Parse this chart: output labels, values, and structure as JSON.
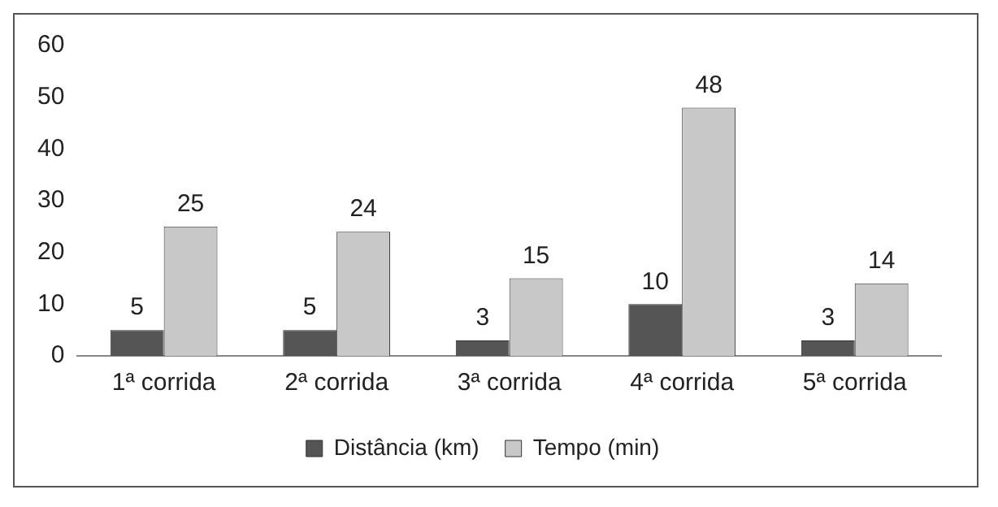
{
  "chart_data": {
    "type": "bar",
    "categories": [
      "1ª corrida",
      "2ª corrida",
      "3ª corrida",
      "4ª corrida",
      "5ª corrida"
    ],
    "series": [
      {
        "name": "Distância (km)",
        "color": "#555555",
        "values": [
          5,
          5,
          3,
          10,
          3
        ]
      },
      {
        "name": "Tempo (min)",
        "color": "#c8c8c8",
        "values": [
          25,
          24,
          15,
          48,
          14
        ]
      }
    ],
    "ylim": [
      0,
      60
    ],
    "yticks": [
      0,
      10,
      20,
      30,
      40,
      50,
      60
    ],
    "grid": false,
    "legend": "bottom",
    "data_labels": true
  }
}
